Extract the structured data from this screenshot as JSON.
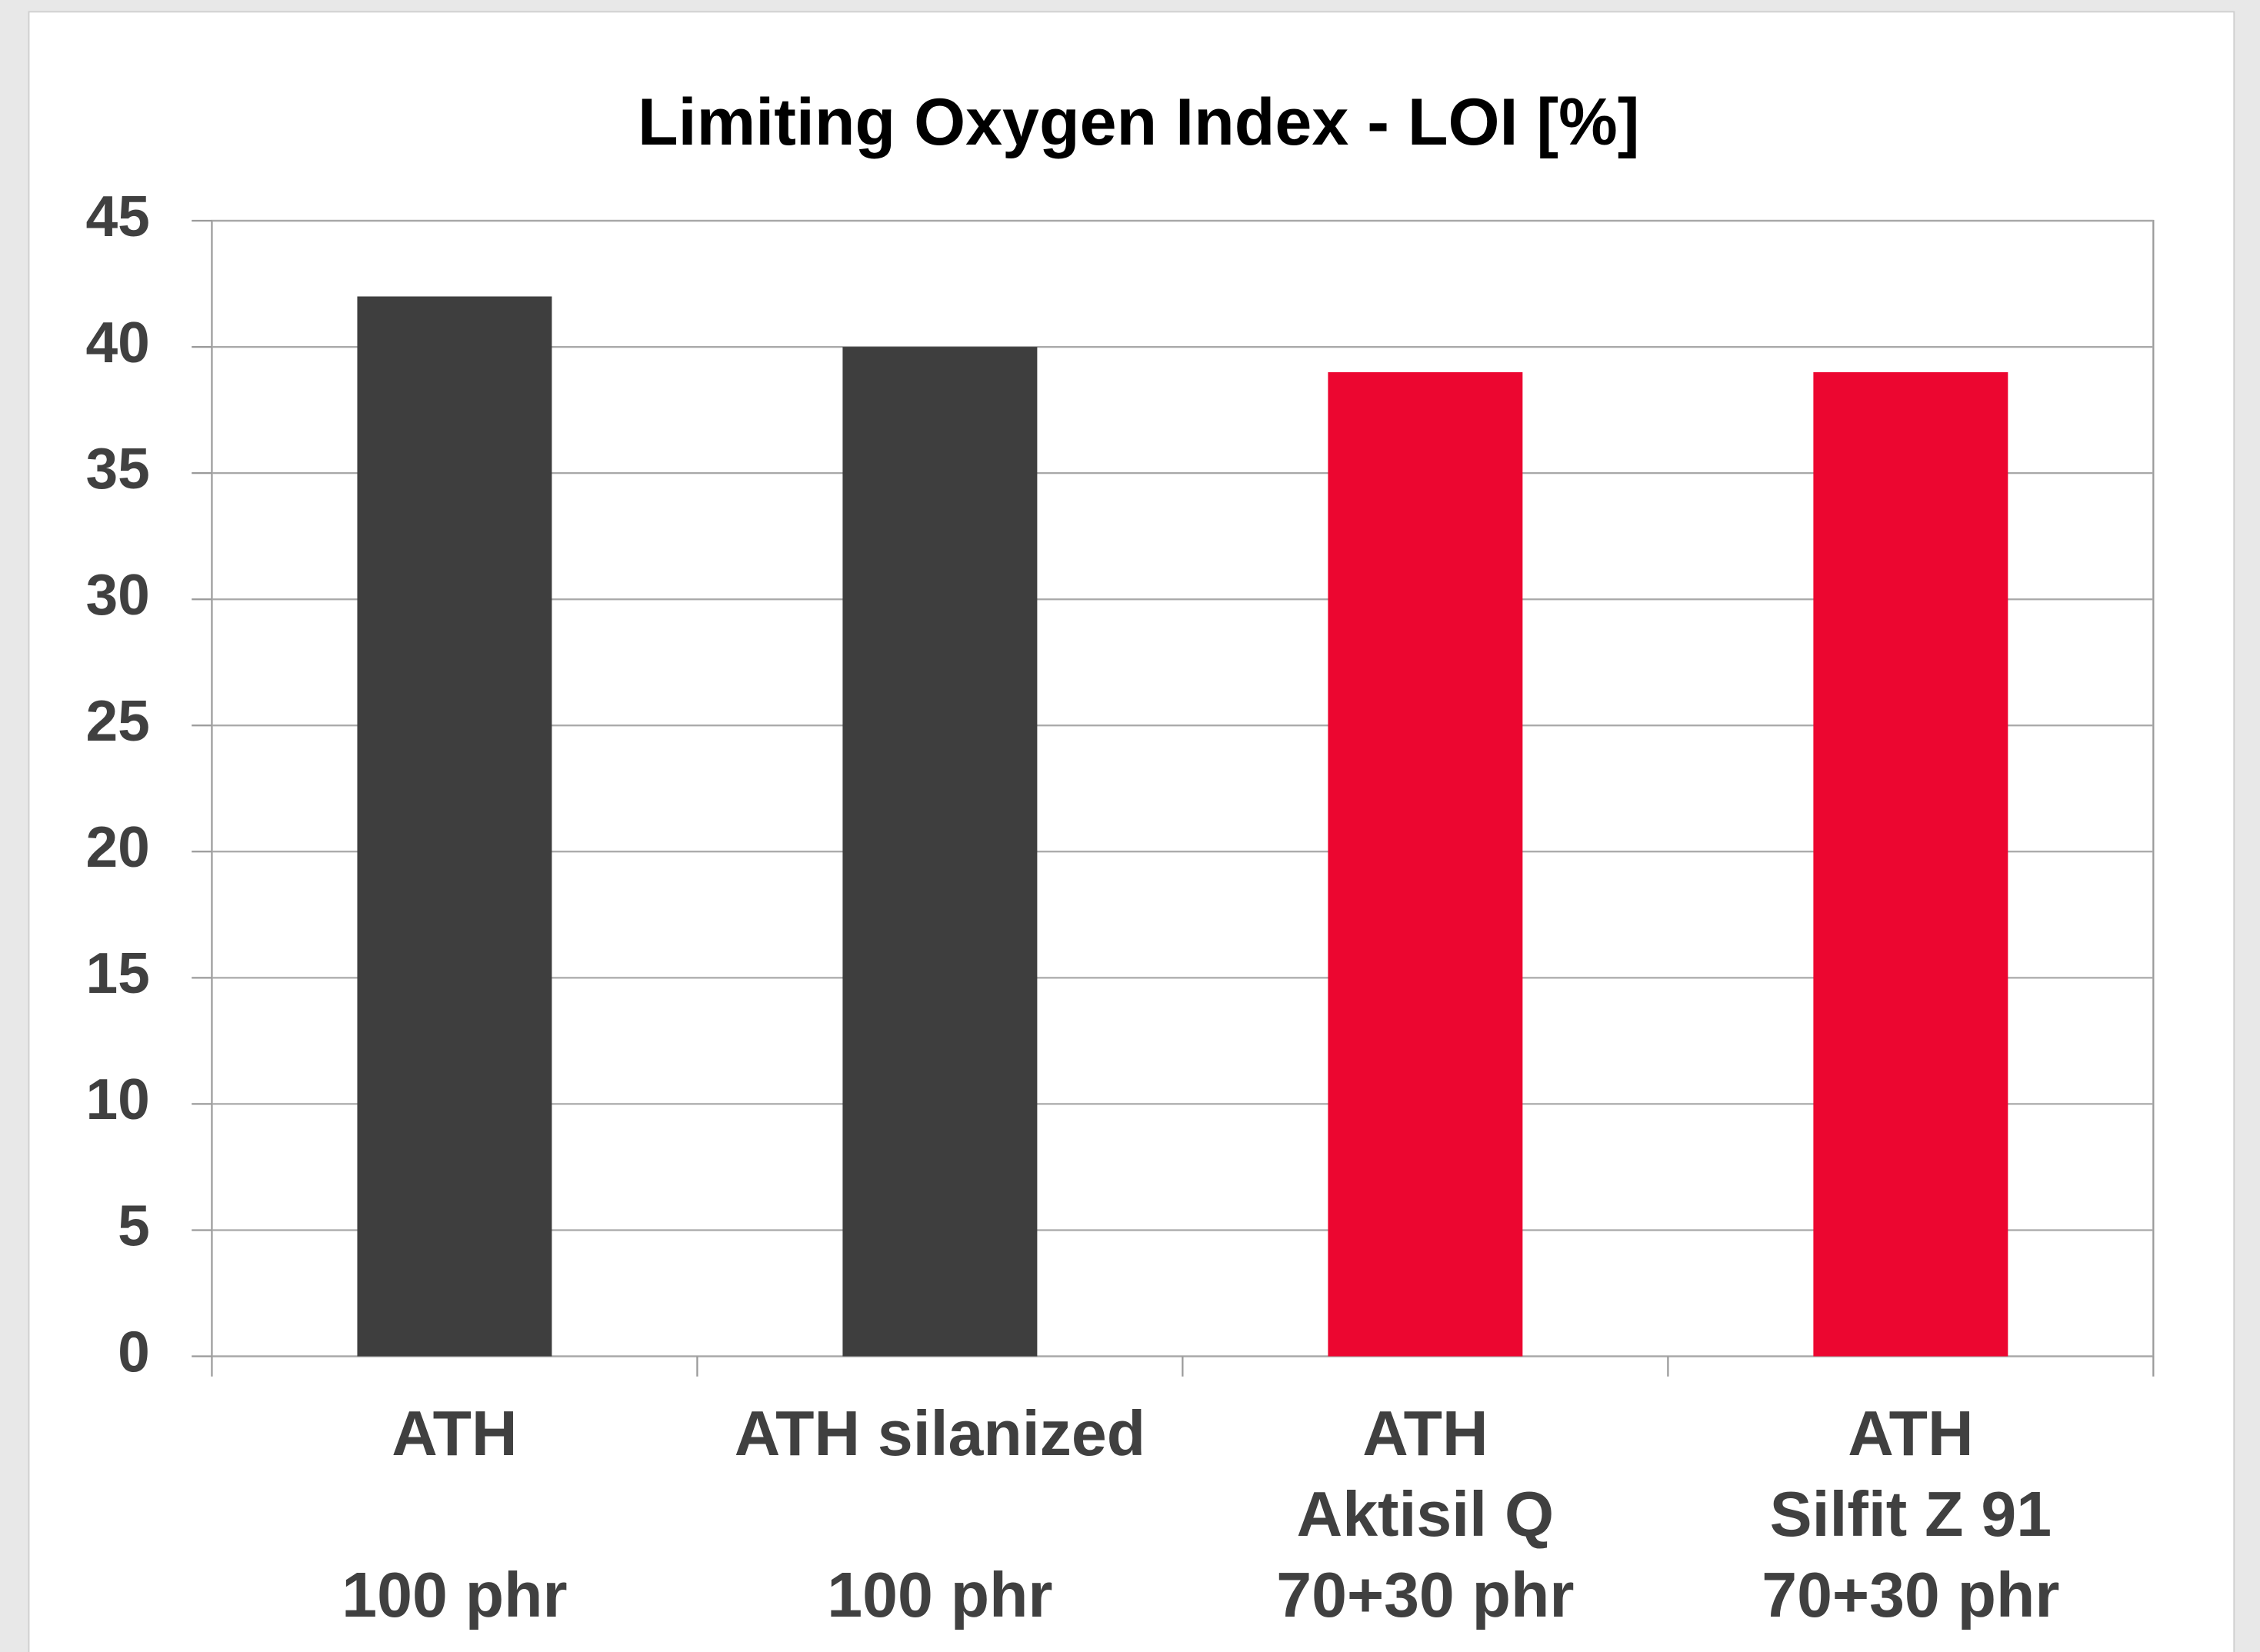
{
  "chart_data": {
    "type": "bar",
    "title": "Limiting Oxygen Index - LOI [%]",
    "categories": [
      [
        "ATH",
        "100 phr"
      ],
      [
        "ATH silanized",
        "100 phr"
      ],
      [
        "ATH",
        "Aktisil Q",
        "70+30 phr"
      ],
      [
        "ATH",
        "Silfit Z 91",
        "70+30 phr"
      ]
    ],
    "values": [
      42,
      40,
      39,
      39
    ],
    "colors": [
      "#3e3e3e",
      "#3e3e3e",
      "#ec0630",
      "#ec0630"
    ],
    "ylim": [
      0,
      45
    ],
    "yticks": [
      0,
      5,
      10,
      15,
      20,
      25,
      30,
      35,
      40,
      45
    ],
    "grid": true
  }
}
